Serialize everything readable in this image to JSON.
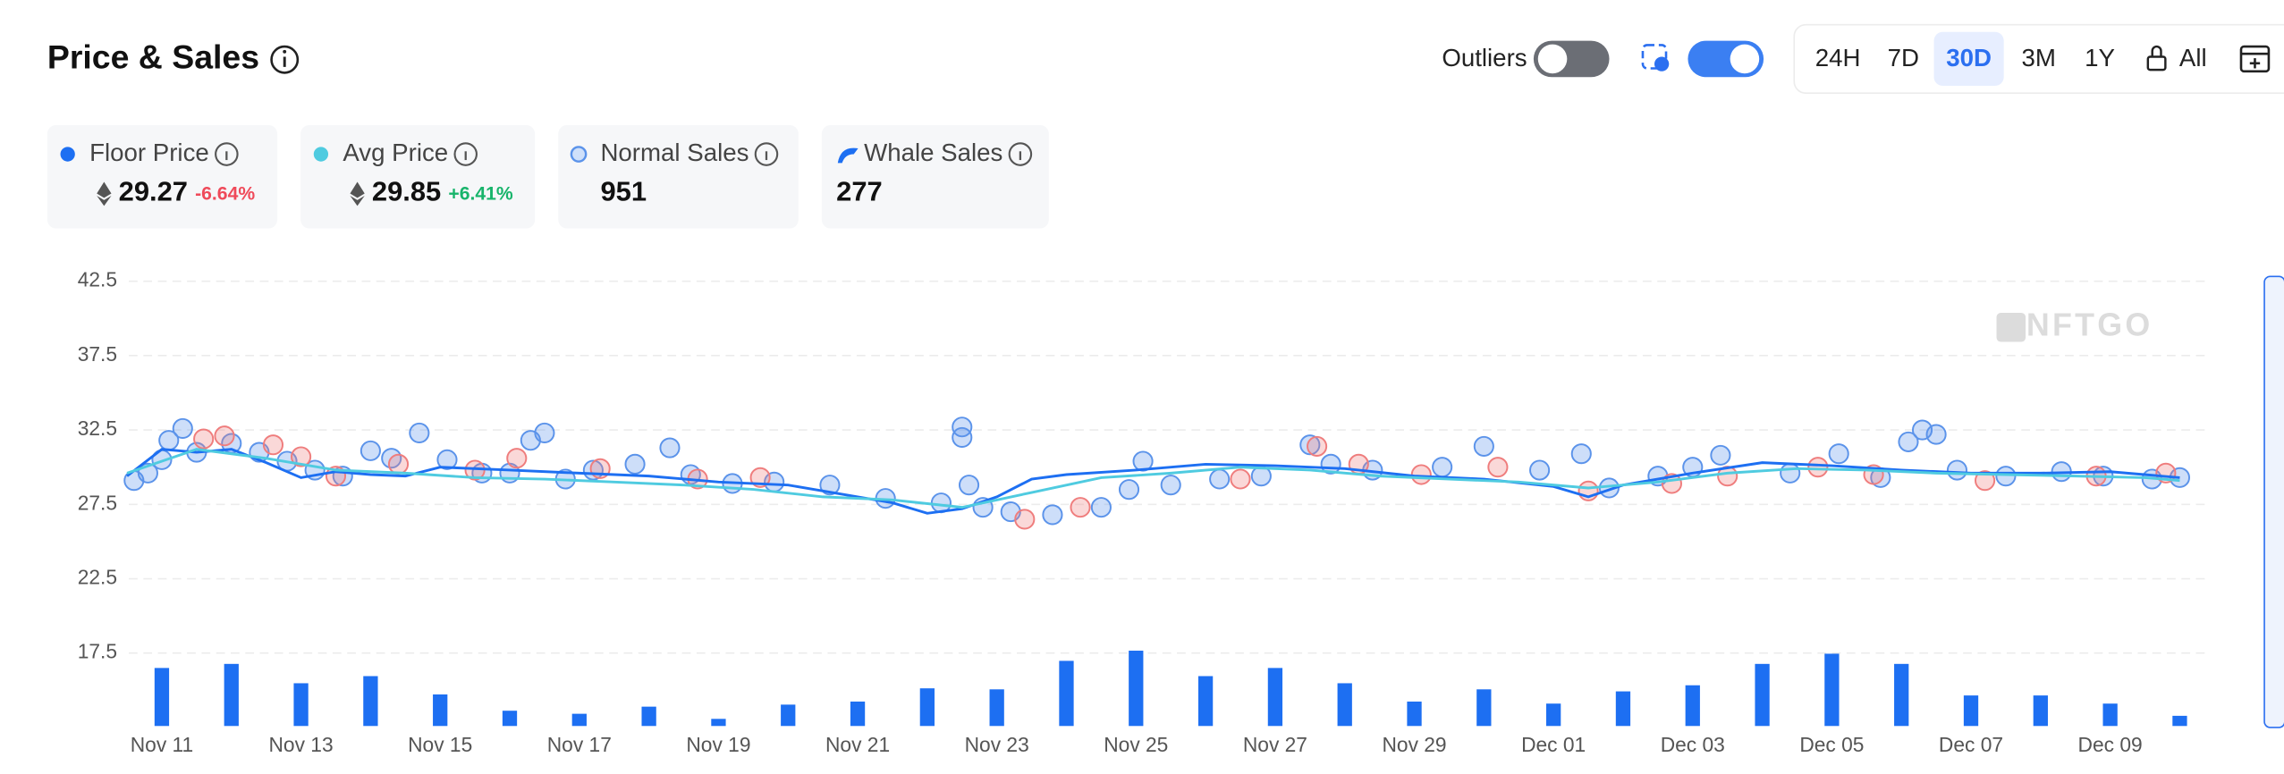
{
  "header": {
    "title": "Price & Sales",
    "outliers_label": "Outliers",
    "ranges": [
      "24H",
      "7D",
      "30D",
      "3M",
      "1Y",
      "All"
    ],
    "active_range": "30D"
  },
  "stats": [
    {
      "value": "29.27",
      "change": "-6.64%"
    },
    {
      "value": "29.85",
      "change": "+6.41%"
    },
    {
      "value": "951"
    },
    {
      "value": "277"
    }
  ],
  "chart_data": {
    "type": "combo",
    "watermark": "NFTGO",
    "xlim": [
      -0.6,
      29.4
    ],
    "xticks": [
      {
        "value": 0,
        "label": "Nov 11"
      },
      {
        "value": 2,
        "label": "Nov 13"
      },
      {
        "value": 4,
        "label": "Nov 15"
      },
      {
        "value": 6,
        "label": "Nov 17"
      },
      {
        "value": 8,
        "label": "Nov 19"
      },
      {
        "value": 10,
        "label": "Nov 21"
      },
      {
        "value": 12,
        "label": "Nov 23"
      },
      {
        "value": 14,
        "label": "Nov 25"
      },
      {
        "value": 16,
        "label": "Nov 27"
      },
      {
        "value": 18,
        "label": "Nov 29"
      },
      {
        "value": 20,
        "label": "Dec 01"
      },
      {
        "value": 22,
        "label": "Dec 03"
      },
      {
        "value": 24,
        "label": "Dec 05"
      },
      {
        "value": 26,
        "label": "Dec 07"
      },
      {
        "value": 28,
        "label": "Dec 09"
      }
    ],
    "ylim": [
      12.6,
      43.8
    ],
    "yticks": [
      42.5,
      37.5,
      32.5,
      27.5,
      22.5,
      17.5
    ],
    "grid": true,
    "y2lim": [
      0,
      456
    ],
    "series": [
      {
        "name": "Floor Price",
        "type": "line",
        "color": "#1d6ff2",
        "x": [
          -0.5,
          0,
          0.5,
          1,
          1.5,
          2,
          2.5,
          3,
          3.5,
          4,
          5,
          6,
          7,
          8,
          9,
          10,
          10.5,
          11,
          11.5,
          12,
          12.5,
          13,
          14,
          15,
          16,
          17,
          18,
          19,
          20,
          20.5,
          21,
          22,
          23,
          24,
          25,
          26,
          27,
          28,
          29
        ],
        "values": [
          29.4,
          31.2,
          31.0,
          31.2,
          30.3,
          29.3,
          29.7,
          29.5,
          29.4,
          30.0,
          29.8,
          29.6,
          29.4,
          29.0,
          28.8,
          28.0,
          27.6,
          26.9,
          27.2,
          28.0,
          29.2,
          29.5,
          29.8,
          30.2,
          30.1,
          29.9,
          29.4,
          29.2,
          28.7,
          28.0,
          28.8,
          29.6,
          30.3,
          30.1,
          29.8,
          29.6,
          29.6,
          29.7,
          29.3
        ]
      },
      {
        "name": "Avg Price",
        "type": "line",
        "color": "#4fcbe0",
        "x": [
          -0.5,
          0.5,
          1.5,
          2.5,
          3.5,
          4.5,
          5.5,
          6.5,
          7.5,
          8.5,
          9.5,
          10.5,
          11.5,
          12.5,
          13.5,
          14.5,
          15.5,
          16.5,
          17.5,
          18.5,
          19.5,
          20.5,
          21.5,
          22.5,
          23.5,
          24.5,
          25.5,
          26.5,
          27.5,
          28.5,
          29
        ],
        "values": [
          29.6,
          31.2,
          30.6,
          29.8,
          29.6,
          29.3,
          29.2,
          29.0,
          28.8,
          28.5,
          28.0,
          27.8,
          27.3,
          28.3,
          29.3,
          29.6,
          30.0,
          29.8,
          29.4,
          29.2,
          29.0,
          28.6,
          29.0,
          29.6,
          29.9,
          29.8,
          29.6,
          29.5,
          29.4,
          29.3,
          29.1
        ]
      },
      {
        "name": "Normal Sales",
        "type": "scatter",
        "color": "#5b93ea",
        "x": [
          -0.4,
          -0.2,
          0,
          0.1,
          0.3,
          0.5,
          1.0,
          1.4,
          1.8,
          2.2,
          2.6,
          3.0,
          3.3,
          3.7,
          4.1,
          4.6,
          5.0,
          5.3,
          5.5,
          5.8,
          6.2,
          6.8,
          7.3,
          7.6,
          8.2,
          8.8,
          9.6,
          10.4,
          11.2,
          11.5,
          11.5,
          11.6,
          11.8,
          12.2,
          12.8,
          13.5,
          13.9,
          14.1,
          14.5,
          15.2,
          15.8,
          16.5,
          16.8,
          17.4,
          18.4,
          19.0,
          19.8,
          20.4,
          20.8,
          21.5,
          22.0,
          22.4,
          23.4,
          24.1,
          24.7,
          25.1,
          25.3,
          25.5,
          25.8,
          26.5,
          27.3,
          27.9,
          28.6,
          29.0
        ],
        "values": [
          29.1,
          29.6,
          30.5,
          31.8,
          32.6,
          31.0,
          31.6,
          31.0,
          30.4,
          29.8,
          29.4,
          31.1,
          30.6,
          32.3,
          30.5,
          29.6,
          29.6,
          31.8,
          32.3,
          29.2,
          29.8,
          30.2,
          31.3,
          29.5,
          28.9,
          29.0,
          28.8,
          27.9,
          27.6,
          32.7,
          32.0,
          28.8,
          27.3,
          27.0,
          26.8,
          27.3,
          28.5,
          30.4,
          28.8,
          29.2,
          29.4,
          31.5,
          30.2,
          29.8,
          30.0,
          31.4,
          29.8,
          30.9,
          28.6,
          29.4,
          30.0,
          30.8,
          29.6,
          30.9,
          29.3,
          31.7,
          32.5,
          32.2,
          29.8,
          29.4,
          29.7,
          29.4,
          29.2,
          29.3
        ]
      },
      {
        "name": "Whale Sales",
        "type": "scatter",
        "color": "#ef7d7d",
        "x": [
          0.6,
          0.9,
          1.6,
          2.0,
          2.5,
          3.4,
          4.5,
          5.1,
          6.3,
          7.7,
          8.6,
          12.4,
          13.2,
          15.5,
          16.6,
          17.2,
          18.1,
          19.2,
          20.5,
          21.7,
          22.5,
          23.8,
          24.6,
          26.2,
          27.8,
          28.8
        ],
        "values": [
          31.9,
          32.1,
          31.5,
          30.7,
          29.4,
          30.2,
          29.8,
          30.6,
          29.9,
          29.2,
          29.3,
          26.5,
          27.3,
          29.2,
          31.4,
          30.2,
          29.5,
          30.0,
          28.4,
          28.9,
          29.4,
          30.0,
          29.5,
          29.1,
          29.4,
          29.6
        ]
      },
      {
        "type": "bar",
        "axis": "y2",
        "color": "#1d6ff2",
        "x": [
          0,
          1,
          2,
          3,
          4,
          5,
          6,
          7,
          8,
          9,
          10,
          11,
          12,
          13,
          14,
          15,
          16,
          17,
          18,
          19,
          20,
          21,
          22,
          23,
          24,
          25,
          26,
          27,
          28,
          29
        ],
        "values": [
          57,
          61,
          42,
          49,
          31,
          15,
          12,
          19,
          7,
          21,
          24,
          37,
          36,
          64,
          74,
          49,
          57,
          42,
          24,
          36,
          22,
          34,
          40,
          61,
          71,
          61,
          30,
          30,
          22,
          10
        ]
      }
    ]
  }
}
